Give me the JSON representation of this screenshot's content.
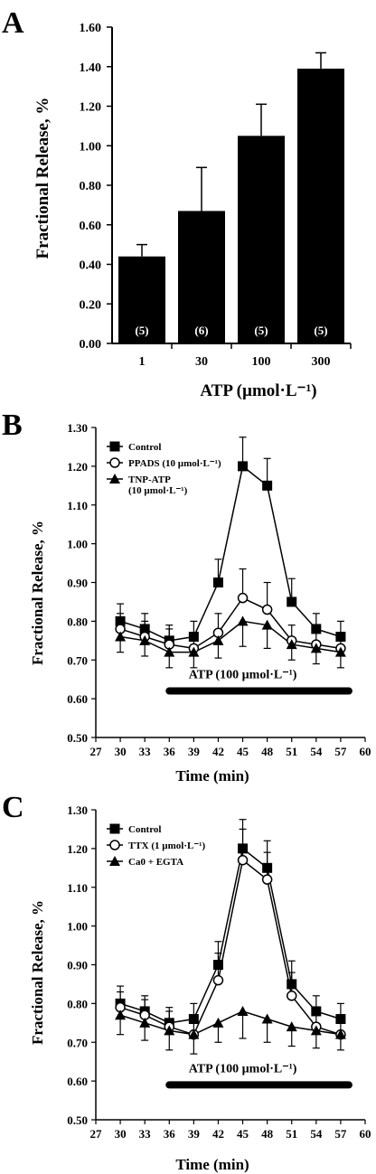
{
  "panels": {
    "a": {
      "letter": "A"
    },
    "b": {
      "letter": "B"
    },
    "c": {
      "letter": "C"
    }
  },
  "chart_data": [
    {
      "id": "A",
      "type": "bar",
      "categories": [
        "1",
        "30",
        "100",
        "300"
      ],
      "values": [
        0.44,
        0.67,
        1.05,
        1.39
      ],
      "errors": [
        0.06,
        0.22,
        0.16,
        0.08
      ],
      "bar_labels": [
        "(5)",
        "(6)",
        "(5)",
        "(5)"
      ],
      "xlabel": "ATP (µmol·L⁻¹)",
      "ylabel": "Fractional Release, %",
      "ylim": [
        0,
        1.6
      ],
      "yticks": [
        "0.00",
        "0.20",
        "0.40",
        "0.60",
        "0.80",
        "1.00",
        "1.20",
        "1.40",
        "1.60"
      ],
      "bar_color": "#000000",
      "grid": false
    },
    {
      "id": "B",
      "type": "line",
      "x": [
        30,
        33,
        36,
        39,
        42,
        45,
        48,
        51,
        54,
        57
      ],
      "series": [
        {
          "name": "Control",
          "marker": "square",
          "values": [
            0.8,
            0.78,
            0.75,
            0.76,
            0.9,
            1.2,
            1.15,
            0.85,
            0.78,
            0.76
          ],
          "errors": [
            0.045,
            0.04,
            0.04,
            0.04,
            0.06,
            0.075,
            0.07,
            0.06,
            0.04,
            0.04
          ]
        },
        {
          "name": "PPADS (10 µmol·L⁻¹)",
          "marker": "circle-open",
          "values": [
            0.78,
            0.76,
            0.74,
            0.73,
            0.77,
            0.86,
            0.83,
            0.75,
            0.74,
            0.73
          ],
          "errors": [
            0.04,
            0.04,
            0.04,
            0.04,
            0.05,
            0.075,
            0.07,
            0.04,
            0.04,
            0.04
          ]
        },
        {
          "name": "TNP-ATP\n(10 µmol·L⁻¹)",
          "marker": "triangle",
          "values": [
            0.76,
            0.75,
            0.72,
            0.72,
            0.75,
            0.8,
            0.79,
            0.74,
            0.73,
            0.72
          ],
          "errors": [
            0.04,
            0.04,
            0.04,
            0.04,
            0.045,
            0.065,
            0.06,
            0.04,
            0.04,
            0.04
          ]
        }
      ],
      "bar_annotation": {
        "text": "ATP (100 µmol·L⁻¹)",
        "x_start": 36,
        "x_end": 58,
        "y": 0.62
      },
      "xlabel": "Time (min)",
      "ylabel": "Fractional Release, %",
      "xlim": [
        27,
        60
      ],
      "ylim": [
        0.5,
        1.3
      ],
      "xticks": [
        "27",
        "30",
        "33",
        "36",
        "39",
        "42",
        "45",
        "48",
        "51",
        "54",
        "57",
        "60"
      ],
      "yticks": [
        "0.50",
        "0.60",
        "0.70",
        "0.80",
        "0.90",
        "1.00",
        "1.10",
        "1.20",
        "1.30"
      ],
      "legend_position": "top-left",
      "grid": false
    },
    {
      "id": "C",
      "type": "line",
      "x": [
        30,
        33,
        36,
        39,
        42,
        45,
        48,
        51,
        54,
        57
      ],
      "series": [
        {
          "name": "Control",
          "marker": "square",
          "values": [
            0.8,
            0.78,
            0.75,
            0.76,
            0.9,
            1.2,
            1.15,
            0.85,
            0.78,
            0.76
          ],
          "errors": [
            0.045,
            0.04,
            0.04,
            0.04,
            0.06,
            0.075,
            0.07,
            0.06,
            0.04,
            0.04
          ]
        },
        {
          "name": "TTX (1 µmol·L⁻¹)",
          "marker": "circle-open",
          "values": [
            0.79,
            0.77,
            0.74,
            0.72,
            0.86,
            1.17,
            1.12,
            0.82,
            0.74,
            0.72
          ],
          "errors": [
            0.04,
            0.04,
            0.04,
            0.04,
            0.07,
            0.08,
            0.07,
            0.06,
            0.04,
            0.04
          ]
        },
        {
          "name": "Ca0 + EGTA",
          "marker": "triangle",
          "values": [
            0.77,
            0.75,
            0.73,
            0.72,
            0.75,
            0.78,
            0.76,
            0.74,
            0.73,
            0.72
          ],
          "errors": [
            0.05,
            0.045,
            0.05,
            0.05,
            0.05,
            0.07,
            0.06,
            0.05,
            0.045,
            0.04
          ]
        }
      ],
      "bar_annotation": {
        "text": "ATP (100 µmol·L⁻¹)",
        "x_start": 36,
        "x_end": 58,
        "y": 0.59
      },
      "xlabel": "Time (min)",
      "ylabel": "Fractional Release, %",
      "xlim": [
        27,
        60
      ],
      "ylim": [
        0.5,
        1.3
      ],
      "xticks": [
        "27",
        "30",
        "33",
        "36",
        "39",
        "42",
        "45",
        "48",
        "51",
        "54",
        "57",
        "60"
      ],
      "yticks": [
        "0.50",
        "0.60",
        "0.70",
        "0.80",
        "0.90",
        "1.00",
        "1.10",
        "1.20",
        "1.30"
      ],
      "legend_position": "top-left",
      "grid": false
    }
  ]
}
